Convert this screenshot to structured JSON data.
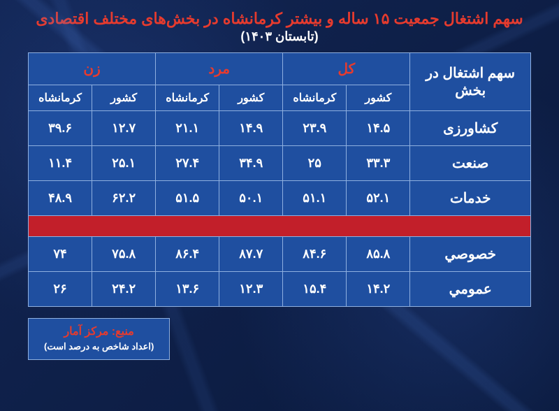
{
  "colors": {
    "title": "#e63b2e",
    "subtitle": "#ffffff",
    "table_border": "#8fb0e0",
    "header_bg": "#1f4fa0",
    "header_group_text": "#e63b2e",
    "header_sub_text": "#ffffff",
    "rowhead_text": "#ffffff",
    "cell_bg": "#1f4fa0",
    "cell_text": "#ffffff",
    "rowlabel_text": "#ffffff",
    "separator_bg": "#c21f2a",
    "footer_border": "#8fb0e0",
    "footer_bg": "#1f4fa0",
    "footer_source": "#e63b2e",
    "footer_note": "#ffffff"
  },
  "title": "سهم اشتغال جمعیت ۱۵ ساله و بیشتر کرمانشاه در بخش‌های مختلف اقتصادی",
  "subtitle": "(تابستان ۱۴۰۳)",
  "table": {
    "row_header": "سهم اشتغال در بخش",
    "groups": [
      "کل",
      "مرد",
      "زن"
    ],
    "sub_headers": [
      "کشور",
      "کرمانشاه"
    ],
    "rows_top": [
      {
        "label": "کشاورزی",
        "values": [
          "۱۴.۵",
          "۲۳.۹",
          "۱۴.۹",
          "۲۱.۱",
          "۱۲.۷",
          "۳۹.۶"
        ]
      },
      {
        "label": "صنعت",
        "values": [
          "۳۳.۳",
          "۲۵",
          "۳۴.۹",
          "۲۷.۴",
          "۲۵.۱",
          "۱۱.۴"
        ]
      },
      {
        "label": "خدمات",
        "values": [
          "۵۲.۱",
          "۵۱.۱",
          "۵۰.۱",
          "۵۱.۵",
          "۶۲.۲",
          "۴۸.۹"
        ]
      }
    ],
    "rows_bottom": [
      {
        "label": "خصوصي",
        "values": [
          "۸۵.۸",
          "۸۴.۶",
          "۸۷.۷",
          "۸۶.۴",
          "۷۵.۸",
          "۷۴"
        ]
      },
      {
        "label": "عمومي",
        "values": [
          "۱۴.۲",
          "۱۵.۴",
          "۱۲.۳",
          "۱۳.۶",
          "۲۴.۲",
          "۲۶"
        ]
      }
    ]
  },
  "footer": {
    "source": "منبع: مرکز آمار",
    "note": "(اعداد شاخص به درصد است)"
  }
}
